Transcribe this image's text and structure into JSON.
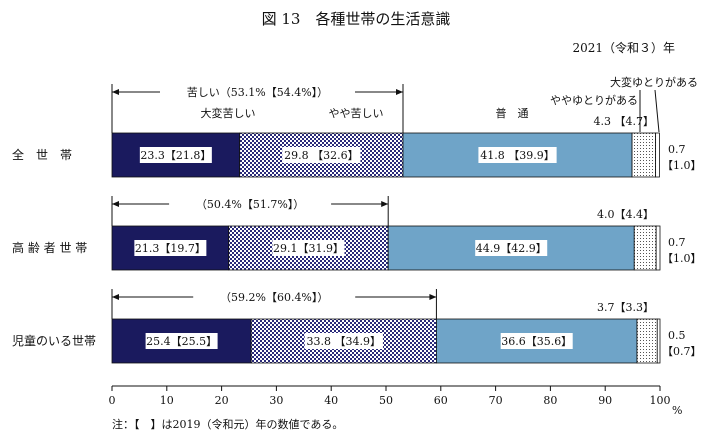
{
  "chart_data": {
    "type": "bar",
    "stacked": true,
    "orientation": "horizontal",
    "title": "図 13　各種世帯の生活意識",
    "year_label": "2021（令和３）年",
    "footnote": "注：【　】は2019（令和元）年の数値である。",
    "x_unit": "%",
    "xlim": [
      0,
      100
    ],
    "x_ticks": [
      "0",
      "10",
      "20",
      "30",
      "40",
      "50",
      "60",
      "70",
      "80",
      "90",
      "100"
    ],
    "categories": [
      "全　世　帯",
      "高 齢 者 世 帯",
      "児童のいる世帯"
    ],
    "series": [
      {
        "name": "大変苦しい",
        "color": "#1a1a5e",
        "values": [
          23.3,
          21.3,
          25.4
        ],
        "prev": [
          21.8,
          19.7,
          25.5
        ]
      },
      {
        "name": "やや苦しい",
        "color": "#2a2a7a",
        "pattern": "checker",
        "values": [
          29.8,
          29.1,
          33.8
        ],
        "prev": [
          32.6,
          31.9,
          34.9
        ]
      },
      {
        "name": "普　通",
        "color": "#6fa4c8",
        "values": [
          41.8,
          44.9,
          36.6
        ],
        "prev": [
          39.9,
          42.9,
          35.6
        ]
      },
      {
        "name": "ややゆとりがある",
        "color": "#ffffff",
        "pattern": "dots",
        "values": [
          4.3,
          4.0,
          3.7
        ],
        "prev": [
          4.7,
          4.4,
          3.3
        ]
      },
      {
        "name": "大変ゆとりがある",
        "color": "#ffffff",
        "values": [
          0.7,
          0.7,
          0.5
        ],
        "prev": [
          1.0,
          1.0,
          0.7
        ]
      }
    ],
    "bar_labels": [
      [
        "23.3【21.8】",
        "29.8 【32.6】",
        "41.8 【39.9】"
      ],
      [
        "21.3【19.7】",
        "29.1【31.9】",
        "44.9【42.9】"
      ],
      [
        "25.4【25.5】",
        "33.8 【34.9】",
        "36.6【35.6】"
      ]
    ],
    "small_labels": [
      {
        "yutori": "4.3 【4.7】",
        "taihen_val": "0.7",
        "taihen_prev": "【1.0】"
      },
      {
        "yutori": "4.0【4.4】",
        "taihen_val": "0.7",
        "taihen_prev": "【1.0】"
      },
      {
        "yutori": "3.7【3.3】",
        "taihen_val": "0.5",
        "taihen_prev": "【0.7】"
      }
    ],
    "brackets": [
      {
        "label": "苦しい（53.1%【54.4%】）",
        "value": 53.1
      },
      {
        "label": "（50.4%【51.7%】）",
        "value": 50.4
      },
      {
        "label": "（59.2%【60.4%】）",
        "value": 59.2
      }
    ],
    "series_headers": {
      "taihen_kurushii": "大変苦しい",
      "yaya_kurushii": "やや苦しい",
      "futsu": "普　通",
      "yaya_yutori": "ややゆとりがある",
      "taihen_yutori": "大変ゆとりがある"
    }
  }
}
